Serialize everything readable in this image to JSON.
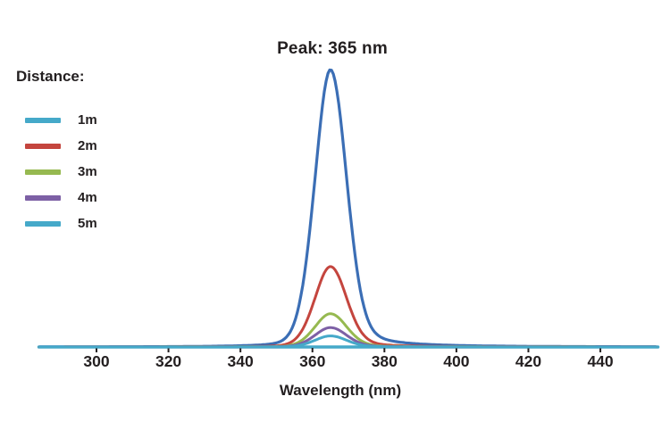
{
  "chart_data": {
    "type": "line",
    "title": "Peak: 365 nm",
    "xlabel": "Wavelength (nm)",
    "ylabel": "",
    "grid": false,
    "legend_position": "upper-left",
    "legend_title": "Distance:",
    "peak_nm": 365,
    "fwhm_nm": 11,
    "x_axis": {
      "min_nm": 284,
      "max_nm": 456,
      "ticks": [
        300,
        320,
        340,
        360,
        380,
        400,
        420,
        440
      ]
    },
    "y_axis": {
      "visible": false,
      "relative_scale": [
        0,
        1
      ]
    },
    "series": [
      {
        "name": "1m",
        "peak_relative_intensity": 1.0,
        "line_color": "#3b6eb5",
        "legend_color": "#45a9c9"
      },
      {
        "name": "2m",
        "peak_relative_intensity": 0.29,
        "line_color": "#c4453e",
        "legend_color": "#c4453e"
      },
      {
        "name": "3m",
        "peak_relative_intensity": 0.12,
        "line_color": "#96b950",
        "legend_color": "#96b950"
      },
      {
        "name": "4m",
        "peak_relative_intensity": 0.07,
        "line_color": "#7d60a5",
        "legend_color": "#7d60a5"
      },
      {
        "name": "5m",
        "peak_relative_intensity": 0.04,
        "line_color": "#45a9c9",
        "legend_color": "#45a9c9"
      }
    ],
    "axis_color": "#45a9c9",
    "tick_color": "#231f20",
    "text_color": "#231f20"
  },
  "legend": {
    "title": "Distance:"
  }
}
